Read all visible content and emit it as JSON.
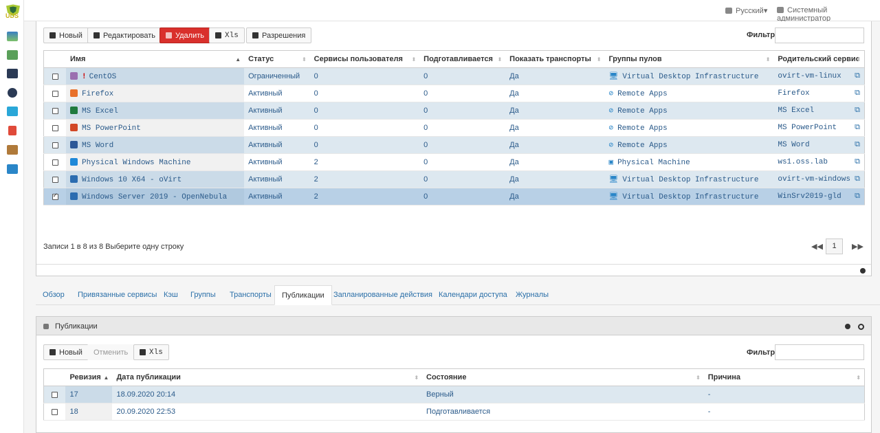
{
  "app": {
    "logo_text": "UDS"
  },
  "topbar": {
    "language": "Русский▾",
    "user": "Системный администратор"
  },
  "services": {
    "toolbar": {
      "new": "Новый",
      "edit": "Редактировать",
      "delete": "Удалить",
      "xls": "Xls",
      "permissions": "Разрешения"
    },
    "filter_label": "Фильтр",
    "columns": [
      "Имя",
      "Статус",
      "Сервисы пользователя",
      "Подготавливается",
      "Показать транспорты",
      "Группы пулов",
      "Родительский сервис"
    ],
    "rows": [
      {
        "name": "CentOS",
        "warn": "!",
        "status": "Ограниченный",
        "user_services": "0",
        "preparing": "0",
        "show_transports": "Да",
        "pool_group": "Virtual Desktop Infrastructure",
        "parent": "ovirt-vm-linux",
        "icon": "centos-icon",
        "group_icon": "monitor-icon",
        "checked": false
      },
      {
        "name": "Firefox",
        "warn": "",
        "status": "Активный",
        "user_services": "0",
        "preparing": "0",
        "show_transports": "Да",
        "pool_group": "Remote Apps",
        "parent": "Firefox",
        "icon": "firefox-icon",
        "group_icon": "remote-apps-icon",
        "checked": false
      },
      {
        "name": "MS Excel",
        "warn": "",
        "status": "Активный",
        "user_services": "0",
        "preparing": "0",
        "show_transports": "Да",
        "pool_group": "Remote Apps",
        "parent": "MS Excel",
        "icon": "excel-icon",
        "group_icon": "remote-apps-icon",
        "checked": false
      },
      {
        "name": "MS PowerPoint",
        "warn": "",
        "status": "Активный",
        "user_services": "0",
        "preparing": "0",
        "show_transports": "Да",
        "pool_group": "Remote Apps",
        "parent": "MS PowerPoint",
        "icon": "powerpoint-icon",
        "group_icon": "remote-apps-icon",
        "checked": false
      },
      {
        "name": "MS Word",
        "warn": "",
        "status": "Активный",
        "user_services": "0",
        "preparing": "0",
        "show_transports": "Да",
        "pool_group": "Remote Apps",
        "parent": "MS Word",
        "icon": "word-icon",
        "group_icon": "remote-apps-icon",
        "checked": false
      },
      {
        "name": "Physical Windows Machine",
        "warn": "",
        "status": "Активный",
        "user_services": "2",
        "preparing": "0",
        "show_transports": "Да",
        "pool_group": "Physical Machine",
        "parent": "ws1.oss.lab",
        "icon": "windows-icon",
        "group_icon": "physical-machine-icon",
        "checked": false
      },
      {
        "name": "Windows 10 X64 - oVirt",
        "warn": "",
        "status": "Активный",
        "user_services": "2",
        "preparing": "0",
        "show_transports": "Да",
        "pool_group": "Virtual Desktop Infrastructure",
        "parent": "ovirt-vm-windows",
        "icon": "vm-icon",
        "group_icon": "monitor-icon",
        "checked": false
      },
      {
        "name": "Windows Server 2019 - OpenNebula",
        "warn": "",
        "status": "Активный",
        "user_services": "2",
        "preparing": "0",
        "show_transports": "Да",
        "pool_group": "Virtual Desktop Infrastructure",
        "parent": "WinSrv2019-gld",
        "icon": "vm-icon",
        "group_icon": "monitor-icon",
        "checked": true
      }
    ],
    "pager_info": "Записи 1 в 8 из 8  Выберите одну строку",
    "page": "1"
  },
  "tabs": [
    "Обзор",
    "Привязанные сервисы",
    "Кэш",
    "Группы",
    "Транспорты",
    "Публикации",
    "Запланированные действия",
    "Календари доступа",
    "Журналы"
  ],
  "active_tab": 5,
  "publications": {
    "title": "Публикации",
    "toolbar": {
      "new": "Новый",
      "cancel": "Отменить",
      "xls": "Xls"
    },
    "filter_label": "Фильтр",
    "columns": [
      "Ревизия",
      "Дата публикации",
      "Состояние",
      "Причина"
    ],
    "rows": [
      {
        "revision": "17",
        "date": "18.09.2020 20:14",
        "state": "Верный",
        "reason": "-"
      },
      {
        "revision": "18",
        "date": "20.09.2020 22:53",
        "state": "Подготавливается",
        "reason": "-"
      }
    ]
  },
  "colors": {
    "accent": "#2a6fa8",
    "danger": "#d9302c",
    "row_alt": "#dde8f0",
    "selected": "#b8d0e6"
  }
}
